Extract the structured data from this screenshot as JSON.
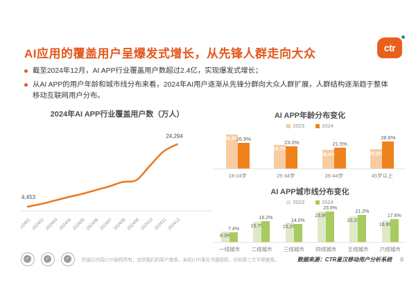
{
  "page": {
    "logo_text": "ctr",
    "title": "AI应用的覆盖用户呈爆发式增长，从先锋人群走向大众",
    "bullets": [
      "截至2024年12月，AI APP行业覆盖用户数超过2.4亿，实现爆发式增长；",
      "从AI APP的用户年龄和城市线分布来看，2024年AI用户逐渐从先锋分群向大众人群扩展，人群结构逐渐趋于整体移动互联网用户分布。"
    ],
    "footer": {
      "copyright": "所展示内容CTR版权所有，仅供我们的客户使用，未经CTR事先书面授权，任何第三方不得使用。",
      "source": "数据来源：CTR星汉移动用户分析系统",
      "page_number": "8"
    },
    "icons": {
      "stamp_check_icon": "✓"
    },
    "colors": {
      "accent_orange": "#E4571D",
      "line_orange": "#E87A25",
      "age_2023": "#F8CDA2",
      "age_2024": "#F0821E",
      "city_2023": "#DEEAC6",
      "city_2024": "#A8CB5F",
      "logo_dot_teal": "#2E8B8B"
    }
  },
  "chart_data": [
    {
      "type": "line",
      "title": "2024年AI APP行业覆盖用户数（万人）",
      "x": [
        "202401",
        "202402",
        "202403",
        "202404",
        "202405",
        "202406",
        "202407",
        "202408",
        "202409",
        "202410",
        "202411",
        "202412"
      ],
      "values": [
        4453,
        5300,
        6400,
        7500,
        8500,
        9700,
        10900,
        12300,
        12900,
        17500,
        22000,
        24294
      ],
      "point_labels": {
        "first": "4,453",
        "last": "24,294"
      },
      "line_color": "#E87A25",
      "ylim": [
        4000,
        26000
      ],
      "grid": false,
      "xlabel": "",
      "ylabel": "万人"
    },
    {
      "type": "bar",
      "title": "AI APP年龄分布变化",
      "categories": [
        "18-24岁",
        "25-34岁",
        "35-44岁",
        "45岁以上"
      ],
      "series": [
        {
          "name": "2023",
          "color": "#F8CDA2",
          "values": [
            35.8,
            24.7,
            19.4,
            20.2
          ]
        },
        {
          "name": "2024",
          "color": "#F0821E",
          "values": [
            26.9,
            23.0,
            21.5,
            28.6
          ]
        }
      ],
      "unit": "%",
      "inner_label_color": "#FFFFFF",
      "outer_label_color": "#5a5a5a",
      "legend_position": "top"
    },
    {
      "type": "bar",
      "title": "AI APP城市线分布变化",
      "categories": [
        "一线城市",
        "二线城市",
        "三线城市",
        "四线城市",
        "五线城市",
        "六线城市"
      ],
      "series": [
        {
          "name": "2023",
          "color": "#DEEAC6",
          "values": [
            8.3,
            15.7,
            15.2,
            23.8,
            20.1,
            16.9
          ]
        },
        {
          "name": "2024",
          "color": "#A8CB5F",
          "values": [
            7.4,
            16.2,
            14.0,
            23.6,
            21.2,
            17.6
          ]
        }
      ],
      "unit": "%",
      "inner_label_color": "#5a5a5a",
      "outer_label_color": "#5a5a5a",
      "legend_position": "top"
    }
  ]
}
